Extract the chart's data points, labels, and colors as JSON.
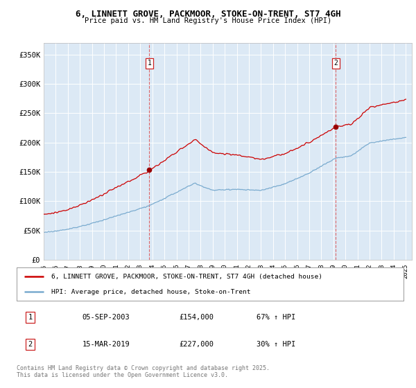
{
  "title": "6, LINNETT GROVE, PACKMOOR, STOKE-ON-TRENT, ST7 4GH",
  "subtitle": "Price paid vs. HM Land Registry's House Price Index (HPI)",
  "plot_bg_color": "#dce9f5",
  "red_line_color": "#cc0000",
  "blue_line_color": "#7aabcf",
  "marker1_date": 2003.75,
  "marker1_price": 154000,
  "marker2_date": 2019.21,
  "marker2_price": 227000,
  "legend_line1": "6, LINNETT GROVE, PACKMOOR, STOKE-ON-TRENT, ST7 4GH (detached house)",
  "legend_line2": "HPI: Average price, detached house, Stoke-on-Trent",
  "table_row1": [
    "1",
    "05-SEP-2003",
    "£154,000",
    "67% ↑ HPI"
  ],
  "table_row2": [
    "2",
    "15-MAR-2019",
    "£227,000",
    "30% ↑ HPI"
  ],
  "footer": "Contains HM Land Registry data © Crown copyright and database right 2025.\nThis data is licensed under the Open Government Licence v3.0.",
  "ylim": [
    0,
    370000
  ],
  "xlim": [
    1995.0,
    2025.5
  ],
  "yticks": [
    0,
    50000,
    100000,
    150000,
    200000,
    250000,
    300000,
    350000
  ],
  "ylabel_format": [
    "£0",
    "£50K",
    "£100K",
    "£150K",
    "£200K",
    "£250K",
    "£300K",
    "£350K"
  ],
  "xtick_start": 1995,
  "xtick_end": 2025,
  "hpi_seed": 123
}
